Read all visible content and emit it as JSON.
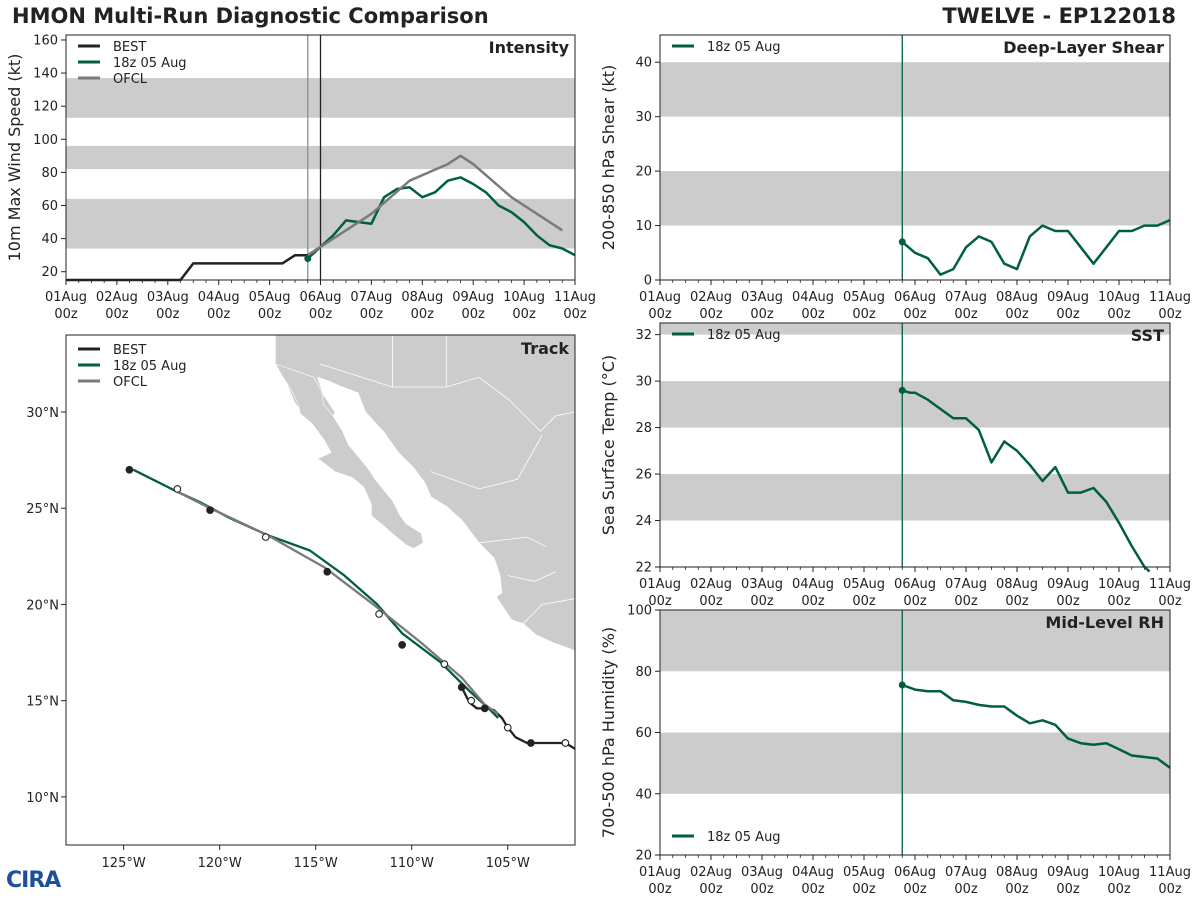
{
  "header": {
    "title_left": "HMON Multi-Run Diagnostic Comparison",
    "title_right": "TWELVE - EP122018"
  },
  "logo_text": "CIRA",
  "colors": {
    "best": "#222222",
    "run": "#00603a",
    "ofcl": "#7a7a7a",
    "band": "#cccccc",
    "land": "#cccccc"
  },
  "time_axis": {
    "tick_labels_top": [
      "01Aug",
      "02Aug",
      "03Aug",
      "04Aug",
      "05Aug",
      "06Aug",
      "07Aug",
      "08Aug",
      "09Aug",
      "10Aug",
      "11Aug"
    ],
    "tick_labels_bottom": [
      "00z",
      "00z",
      "00z",
      "00z",
      "00z",
      "00z",
      "00z",
      "00z",
      "00z",
      "00z",
      "00z"
    ]
  },
  "chart_data": [
    {
      "id": "intensity",
      "type": "line",
      "title": "Intensity",
      "ylabel": "10m Max Wind Speed (kt)",
      "xlim": [
        0,
        10
      ],
      "ylim": [
        15,
        163
      ],
      "yticks": [
        20,
        40,
        60,
        80,
        100,
        120,
        140,
        160
      ],
      "bands": [
        [
          34,
          64
        ],
        [
          82,
          96
        ],
        [
          113,
          137
        ]
      ],
      "vlines": [
        {
          "x": 4.75,
          "color": "#7a9a8a"
        },
        {
          "x": 5.0,
          "color": "#222222"
        }
      ],
      "legend": [
        "BEST",
        "18z 05 Aug",
        "OFCL"
      ],
      "series": [
        {
          "name": "BEST",
          "x": [
            0,
            1,
            2,
            2.25,
            2.5,
            3,
            3.5,
            4,
            4.25,
            4.5,
            4.75,
            5.0
          ],
          "y": [
            15,
            15,
            15,
            15,
            25,
            25,
            25,
            25,
            25,
            30,
            30,
            35
          ]
        },
        {
          "name": "18z 05 Aug",
          "x": [
            4.75,
            5.0,
            5.25,
            5.5,
            5.75,
            6.0,
            6.25,
            6.5,
            6.75,
            7.0,
            7.25,
            7.5,
            7.75,
            8.0,
            8.25,
            8.5,
            8.75,
            9.0,
            9.25,
            9.5,
            9.75,
            10.0
          ],
          "y": [
            28,
            35,
            42,
            51,
            50,
            49,
            65,
            70,
            71,
            65,
            68,
            75,
            77,
            73,
            68,
            60,
            56,
            50,
            42,
            36,
            34,
            30
          ]
        },
        {
          "name": "OFCL",
          "x": [
            4.75,
            5.0,
            5.5,
            6.0,
            6.75,
            7.5,
            7.75,
            8.0,
            8.75,
            9.0,
            9.75
          ],
          "y": [
            30,
            35,
            45,
            55,
            75,
            85,
            90,
            85,
            65,
            60,
            45
          ]
        }
      ]
    },
    {
      "id": "shear",
      "type": "line",
      "title": "Deep-Layer Shear",
      "ylabel": "200-850 hPa Shear (kt)",
      "xlim": [
        0,
        10
      ],
      "ylim": [
        0,
        45
      ],
      "yticks": [
        0,
        10,
        20,
        30,
        40
      ],
      "bands": [
        [
          10,
          20
        ],
        [
          30,
          40
        ]
      ],
      "vlines": [
        {
          "x": 4.75,
          "color": "#00603a"
        }
      ],
      "legend": [
        "18z 05 Aug"
      ],
      "series": [
        {
          "name": "18z 05 Aug",
          "x": [
            4.75,
            5.0,
            5.25,
            5.5,
            5.75,
            6.0,
            6.25,
            6.5,
            6.75,
            7.0,
            7.25,
            7.5,
            7.75,
            8.0,
            8.25,
            8.5,
            8.75,
            9.0,
            9.25,
            9.5,
            9.75,
            10.0
          ],
          "y": [
            7,
            5,
            4,
            1,
            2,
            6,
            8,
            7,
            3,
            2,
            8,
            10,
            9,
            9,
            6,
            3,
            6,
            9,
            9,
            10,
            10,
            11
          ]
        }
      ]
    },
    {
      "id": "sst",
      "type": "line",
      "title": "SST",
      "ylabel": "Sea Surface Temp (°C)",
      "xlim": [
        0,
        10
      ],
      "ylim": [
        22,
        32.5
      ],
      "yticks": [
        22,
        24,
        26,
        28,
        30,
        32
      ],
      "bands": [
        [
          24,
          26
        ],
        [
          28,
          30
        ],
        [
          32,
          32.5
        ]
      ],
      "vlines": [
        {
          "x": 4.75,
          "color": "#00603a"
        }
      ],
      "legend": [
        "18z 05 Aug"
      ],
      "series": [
        {
          "name": "18z 05 Aug",
          "x": [
            4.75,
            4.9,
            5.0,
            5.25,
            5.5,
            5.75,
            6.0,
            6.25,
            6.5,
            6.75,
            7.0,
            7.25,
            7.5,
            7.75,
            8.0,
            8.25,
            8.5,
            8.75,
            9.0,
            9.25,
            9.5,
            9.6
          ],
          "y": [
            29.6,
            29.5,
            29.5,
            29.2,
            28.8,
            28.4,
            28.4,
            27.9,
            26.5,
            27.4,
            27.0,
            26.4,
            25.7,
            26.3,
            25.2,
            25.2,
            25.4,
            24.8,
            23.9,
            22.9,
            22.0,
            21.8
          ]
        }
      ]
    },
    {
      "id": "rh",
      "type": "line",
      "title": "Mid-Level RH",
      "ylabel": "700-500 hPa Humidity (%)",
      "xlim": [
        0,
        10
      ],
      "ylim": [
        20,
        100
      ],
      "yticks": [
        20,
        40,
        60,
        80,
        100
      ],
      "bands": [
        [
          40,
          60
        ],
        [
          80,
          100
        ]
      ],
      "vlines": [
        {
          "x": 4.75,
          "color": "#00603a"
        }
      ],
      "legend": [
        "18z 05 Aug"
      ],
      "series": [
        {
          "name": "18z 05 Aug",
          "x": [
            4.75,
            5.0,
            5.25,
            5.5,
            5.75,
            6.0,
            6.25,
            6.5,
            6.75,
            7.0,
            7.25,
            7.5,
            7.75,
            8.0,
            8.25,
            8.5,
            8.75,
            9.0,
            9.25,
            9.5,
            9.75,
            10.0
          ],
          "y": [
            75.5,
            74,
            73.5,
            73.5,
            70.5,
            70,
            69,
            68.5,
            68.5,
            65.5,
            63,
            64,
            62.5,
            58,
            56.5,
            56,
            56.5,
            54.5,
            52.5,
            52,
            51.5,
            48.5
          ]
        }
      ]
    },
    {
      "id": "track",
      "type": "map",
      "title": "Track",
      "xlim": [
        -128,
        -101.5
      ],
      "ylim": [
        7.5,
        34
      ],
      "xticks": [
        -125,
        -120,
        -115,
        -110,
        -105
      ],
      "xtick_labels": [
        "125°W",
        "120°W",
        "115°W",
        "110°W",
        "105°W"
      ],
      "yticks": [
        10,
        15,
        20,
        25,
        30
      ],
      "ytick_labels": [
        "10°N",
        "15°N",
        "20°N",
        "25°N",
        "30°N"
      ],
      "legend": [
        "BEST",
        "18z 05 Aug",
        "OFCL"
      ],
      "series": [
        {
          "name": "BEST",
          "lon": [
            -101.5,
            -102.0,
            -103.0,
            -104.0,
            -104.6,
            -105.0,
            -105.3,
            -105.7,
            -106.1,
            -106.6,
            -107.0,
            -107.4
          ],
          "lat": [
            12.5,
            12.8,
            12.8,
            12.8,
            13.1,
            13.6,
            14.1,
            14.5,
            14.6,
            14.6,
            14.9,
            15.7
          ]
        },
        {
          "name": "18z 05 Aug",
          "lon": [
            -105.5,
            -106.0,
            -107.0,
            -108.5,
            -110.5,
            -111.8,
            -113.5,
            -115.3,
            -117.5,
            -119.5,
            -121.0,
            -122.3,
            -124.5
          ],
          "lat": [
            14.1,
            14.6,
            15.5,
            17.0,
            18.5,
            20.0,
            21.5,
            22.8,
            23.6,
            24.5,
            25.3,
            25.9,
            27.0
          ]
        },
        {
          "name": "OFCL",
          "lon": [
            -105.5,
            -106.2,
            -107.4,
            -109.5,
            -112.0,
            -114.5,
            -117.5,
            -120.5,
            -122.3
          ],
          "lat": [
            14.3,
            14.8,
            16.2,
            18.0,
            20.0,
            21.9,
            23.6,
            25.0,
            25.9
          ]
        }
      ],
      "best_open_markers": {
        "lon": [
          -102.0,
          -105.0,
          -106.9
        ],
        "lat": [
          12.8,
          13.6,
          15.0
        ]
      },
      "best_filled_markers": {
        "lon": [
          -103.8,
          -106.2,
          -107.4
        ],
        "lat": [
          12.8,
          14.6,
          15.7
        ]
      },
      "run_filled_markers": {
        "lon": [
          -110.5,
          -114.4,
          -120.5,
          -124.7
        ],
        "lat": [
          17.9,
          21.7,
          24.9,
          27.0
        ]
      },
      "run_open_markers": {
        "lon": [
          -108.3,
          -111.7,
          -117.6,
          -122.2
        ],
        "lat": [
          16.9,
          19.5,
          23.5,
          26.0
        ]
      }
    }
  ]
}
